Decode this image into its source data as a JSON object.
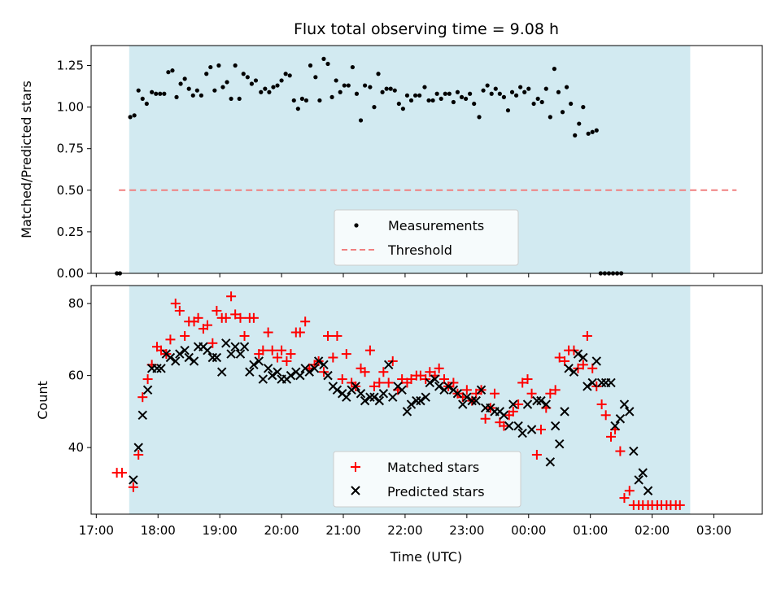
{
  "chart_data": [
    {
      "type": "scatter",
      "title": "Flux total observing time = 9.08 h",
      "xlabel": "",
      "ylabel": "Matched/Predicted stars",
      "ylim": [
        0,
        1.37
      ],
      "yticks": [
        "0.00",
        "0.25",
        "0.50",
        "0.75",
        "1.00",
        "1.25"
      ],
      "shaded_span": [
        "17:32",
        "02:37"
      ],
      "shade_color": "#add8e6",
      "threshold": {
        "value": 0.5,
        "from": "17:22",
        "to": "03:22",
        "color": "#f08080"
      },
      "legend": {
        "placement": "lower-center",
        "entries": [
          "Measurements",
          "Threshold"
        ]
      },
      "series": [
        {
          "name": "Measurements",
          "color": "#000000",
          "marker": "dot",
          "points": [
            [
              "17:20",
              0.0
            ],
            [
              "17:23",
              0.0
            ],
            [
              "17:33",
              0.94
            ],
            [
              "17:37",
              0.95
            ],
            [
              "17:41",
              1.1
            ],
            [
              "17:45",
              1.05
            ],
            [
              "17:49",
              1.02
            ],
            [
              "17:54",
              1.09
            ],
            [
              "17:58",
              1.08
            ],
            [
              "18:02",
              1.08
            ],
            [
              "18:06",
              1.08
            ],
            [
              "18:10",
              1.21
            ],
            [
              "18:14",
              1.22
            ],
            [
              "18:18",
              1.06
            ],
            [
              "18:22",
              1.14
            ],
            [
              "18:26",
              1.17
            ],
            [
              "18:30",
              1.11
            ],
            [
              "18:34",
              1.07
            ],
            [
              "18:38",
              1.1
            ],
            [
              "18:42",
              1.07
            ],
            [
              "18:47",
              1.2
            ],
            [
              "18:51",
              1.24
            ],
            [
              "18:55",
              1.1
            ],
            [
              "18:59",
              1.25
            ],
            [
              "19:03",
              1.12
            ],
            [
              "19:07",
              1.15
            ],
            [
              "19:11",
              1.05
            ],
            [
              "19:15",
              1.25
            ],
            [
              "19:19",
              1.05
            ],
            [
              "19:23",
              1.2
            ],
            [
              "19:27",
              1.18
            ],
            [
              "19:31",
              1.14
            ],
            [
              "19:35",
              1.16
            ],
            [
              "19:40",
              1.09
            ],
            [
              "19:44",
              1.11
            ],
            [
              "19:48",
              1.09
            ],
            [
              "19:52",
              1.12
            ],
            [
              "19:56",
              1.13
            ],
            [
              "20:00",
              1.16
            ],
            [
              "20:04",
              1.2
            ],
            [
              "20:08",
              1.19
            ],
            [
              "20:12",
              1.04
            ],
            [
              "20:16",
              0.99
            ],
            [
              "20:20",
              1.05
            ],
            [
              "20:24",
              1.04
            ],
            [
              "20:28",
              1.25
            ],
            [
              "20:33",
              1.18
            ],
            [
              "20:37",
              1.04
            ],
            [
              "20:41",
              1.29
            ],
            [
              "20:45",
              1.26
            ],
            [
              "20:49",
              1.06
            ],
            [
              "20:53",
              1.16
            ],
            [
              "20:57",
              1.09
            ],
            [
              "21:01",
              1.13
            ],
            [
              "21:05",
              1.13
            ],
            [
              "21:09",
              1.24
            ],
            [
              "21:13",
              1.08
            ],
            [
              "21:17",
              0.92
            ],
            [
              "21:21",
              1.13
            ],
            [
              "21:26",
              1.12
            ],
            [
              "21:30",
              1.0
            ],
            [
              "21:34",
              1.2
            ],
            [
              "21:38",
              1.09
            ],
            [
              "21:42",
              1.11
            ],
            [
              "21:46",
              1.11
            ],
            [
              "21:50",
              1.1
            ],
            [
              "21:54",
              1.02
            ],
            [
              "21:58",
              0.99
            ],
            [
              "22:02",
              1.07
            ],
            [
              "22:06",
              1.04
            ],
            [
              "22:10",
              1.07
            ],
            [
              "22:14",
              1.07
            ],
            [
              "22:19",
              1.12
            ],
            [
              "22:23",
              1.04
            ],
            [
              "22:27",
              1.04
            ],
            [
              "22:31",
              1.08
            ],
            [
              "22:35",
              1.05
            ],
            [
              "22:39",
              1.08
            ],
            [
              "22:43",
              1.08
            ],
            [
              "22:47",
              1.03
            ],
            [
              "22:51",
              1.09
            ],
            [
              "22:55",
              1.06
            ],
            [
              "22:59",
              1.05
            ],
            [
              "23:03",
              1.08
            ],
            [
              "23:07",
              1.02
            ],
            [
              "23:12",
              0.94
            ],
            [
              "23:16",
              1.1
            ],
            [
              "23:20",
              1.13
            ],
            [
              "23:24",
              1.08
            ],
            [
              "23:28",
              1.11
            ],
            [
              "23:32",
              1.08
            ],
            [
              "23:36",
              1.06
            ],
            [
              "23:40",
              0.98
            ],
            [
              "23:44",
              1.09
            ],
            [
              "23:48",
              1.07
            ],
            [
              "23:52",
              1.12
            ],
            [
              "23:56",
              1.09
            ],
            [
              "00:00",
              1.11
            ],
            [
              "00:05",
              1.02
            ],
            [
              "00:09",
              1.05
            ],
            [
              "00:13",
              1.03
            ],
            [
              "00:17",
              1.11
            ],
            [
              "00:21",
              0.94
            ],
            [
              "00:25",
              1.23
            ],
            [
              "00:29",
              1.09
            ],
            [
              "00:33",
              0.97
            ],
            [
              "00:37",
              1.12
            ],
            [
              "00:41",
              1.02
            ],
            [
              "00:45",
              0.83
            ],
            [
              "00:49",
              0.9
            ],
            [
              "00:53",
              1.0
            ],
            [
              "00:58",
              0.84
            ],
            [
              "01:02",
              0.85
            ],
            [
              "01:06",
              0.86
            ],
            [
              "01:10",
              0.0
            ],
            [
              "01:14",
              0.0
            ],
            [
              "01:18",
              0.0
            ],
            [
              "01:22",
              0.0
            ],
            [
              "01:26",
              0.0
            ],
            [
              "01:30",
              0.0
            ]
          ]
        }
      ]
    },
    {
      "type": "scatter",
      "xlabel": "Time (UTC)",
      "ylabel": "Count",
      "ylim": [
        21.5,
        85
      ],
      "yticks": [
        "40",
        "60",
        "80"
      ],
      "xticks": [
        "17:00",
        "18:00",
        "19:00",
        "20:00",
        "21:00",
        "22:00",
        "23:00",
        "00:00",
        "01:00",
        "02:00",
        "03:00"
      ],
      "xlim": [
        "16:55",
        "03:47"
      ],
      "shaded_span": [
        "17:32",
        "02:37"
      ],
      "shade_color": "#add8e6",
      "legend": {
        "placement": "lower-center",
        "entries": [
          "Matched stars",
          "Predicted stars"
        ]
      },
      "series": [
        {
          "name": "Matched stars",
          "color": "#ff0000",
          "marker": "plus",
          "values": [
            33,
            33,
            29,
            38,
            54,
            59,
            63,
            68,
            67,
            66,
            70,
            80,
            78,
            71,
            75,
            75,
            76,
            73,
            74,
            69,
            78,
            76,
            76,
            82,
            77,
            76,
            71,
            76,
            76,
            66,
            67,
            72,
            67,
            65,
            67,
            64,
            66,
            72,
            72,
            75,
            62,
            63,
            64,
            61,
            71,
            65,
            71,
            59,
            66,
            58,
            57,
            62,
            61,
            67,
            57,
            58,
            61,
            58,
            64,
            56,
            59,
            58,
            59,
            60,
            60,
            59,
            61,
            60,
            62,
            59,
            57,
            58,
            55,
            54,
            56,
            53,
            55,
            56,
            48,
            51,
            55,
            47,
            46,
            49,
            50,
            52,
            58,
            59,
            55,
            38,
            45,
            51,
            55,
            56,
            65,
            64,
            67,
            67,
            62,
            63,
            71,
            62,
            57,
            52,
            49,
            43,
            45,
            39,
            26,
            28,
            24,
            24,
            24,
            24,
            24,
            24,
            24,
            24,
            24,
            24,
            24
          ],
          "times": [
            "17:20",
            "17:25",
            "17:36",
            "17:41",
            "17:45",
            "17:50",
            "17:54",
            "17:59",
            "18:03",
            "18:08",
            "18:12",
            "18:17",
            "18:21",
            "18:26",
            "18:30",
            "18:35",
            "18:39",
            "18:44",
            "18:48",
            "18:53",
            "18:57",
            "19:02",
            "19:06",
            "19:11",
            "19:15",
            "19:20",
            "19:24",
            "19:29",
            "19:33",
            "19:38",
            "19:42",
            "19:47",
            "19:51",
            "19:56",
            "20:00",
            "20:05",
            "20:09",
            "20:14",
            "20:18",
            "20:23",
            "20:27",
            "20:32",
            "20:36",
            "20:41",
            "20:45",
            "20:50",
            "20:54",
            "20:59",
            "21:03",
            "21:08",
            "21:12",
            "21:17",
            "21:21",
            "21:26",
            "21:30",
            "21:35",
            "21:39",
            "21:44",
            "21:48",
            "21:53",
            "21:57",
            "22:02",
            "22:06",
            "22:11",
            "22:15",
            "22:20",
            "22:24",
            "22:29",
            "22:33",
            "22:38",
            "22:42",
            "22:47",
            "22:51",
            "22:56",
            "23:00",
            "23:05",
            "23:09",
            "23:14",
            "23:18",
            "23:23",
            "23:27",
            "23:32",
            "23:36",
            "23:41",
            "23:45",
            "23:50",
            "23:54",
            "23:59",
            "00:03",
            "00:08",
            "00:12",
            "00:17",
            "00:21",
            "00:26",
            "00:30",
            "00:35",
            "00:39",
            "00:44",
            "00:48",
            "00:53",
            "00:57",
            "01:02",
            "01:06",
            "01:11",
            "01:15",
            "01:20",
            "01:24",
            "01:29",
            "01:33",
            "01:38",
            "01:42",
            "01:47",
            "01:51",
            "01:56",
            "02:00",
            "02:05",
            "02:09",
            "02:14",
            "02:18",
            "02:23",
            "02:27"
          ]
        },
        {
          "name": "Predicted stars",
          "color": "#000000",
          "marker": "x",
          "values": [
            31,
            40,
            49,
            56,
            62,
            62,
            62,
            66,
            65,
            64,
            66,
            67,
            65,
            64,
            68,
            68,
            67,
            65,
            65,
            61,
            69,
            66,
            68,
            66,
            68,
            61,
            63,
            64,
            59,
            62,
            60,
            61,
            59,
            59,
            60,
            61,
            60,
            62,
            61,
            62,
            64,
            63,
            60,
            57,
            56,
            55,
            54,
            56,
            57,
            55,
            53,
            54,
            54,
            53,
            55,
            63,
            54,
            57,
            56,
            50,
            52,
            53,
            53,
            54,
            58,
            59,
            57,
            56,
            57,
            56,
            55,
            52,
            54,
            53,
            53,
            56,
            51,
            51,
            50,
            50,
            49,
            46,
            52,
            46,
            44,
            52,
            45,
            53,
            53,
            52,
            36,
            46,
            41,
            50,
            62,
            61,
            66,
            65,
            57,
            58,
            64,
            58,
            58,
            58,
            46,
            48,
            52,
            50,
            39,
            31,
            33,
            28
          ],
          "times": [
            "17:36",
            "17:41",
            "17:45",
            "17:50",
            "17:54",
            "17:59",
            "18:03",
            "18:08",
            "18:12",
            "18:17",
            "18:21",
            "18:26",
            "18:30",
            "18:35",
            "18:39",
            "18:44",
            "18:48",
            "18:53",
            "18:57",
            "19:02",
            "19:06",
            "19:11",
            "19:15",
            "19:20",
            "19:24",
            "19:29",
            "19:33",
            "19:38",
            "19:42",
            "19:47",
            "19:51",
            "19:56",
            "20:00",
            "20:05",
            "20:09",
            "20:14",
            "20:18",
            "20:23",
            "20:27",
            "20:32",
            "20:36",
            "20:41",
            "20:45",
            "20:50",
            "20:54",
            "20:59",
            "21:03",
            "21:08",
            "21:12",
            "21:17",
            "21:21",
            "21:26",
            "21:30",
            "21:35",
            "21:39",
            "21:44",
            "21:48",
            "21:53",
            "21:57",
            "22:02",
            "22:06",
            "22:11",
            "22:15",
            "22:20",
            "22:24",
            "22:29",
            "22:33",
            "22:38",
            "22:42",
            "22:47",
            "22:51",
            "22:56",
            "23:00",
            "23:05",
            "23:09",
            "23:14",
            "23:18",
            "23:23",
            "23:27",
            "23:32",
            "23:36",
            "23:41",
            "23:45",
            "23:50",
            "23:54",
            "23:59",
            "00:03",
            "00:08",
            "00:12",
            "00:17",
            "00:21",
            "00:26",
            "00:30",
            "00:35",
            "00:39",
            "00:44",
            "00:48",
            "00:53",
            "00:57",
            "01:02",
            "01:06",
            "01:11",
            "01:15",
            "01:20",
            "01:24",
            "01:29",
            "01:33",
            "01:38",
            "01:42",
            "01:47",
            "01:51",
            "01:56"
          ]
        }
      ]
    }
  ]
}
